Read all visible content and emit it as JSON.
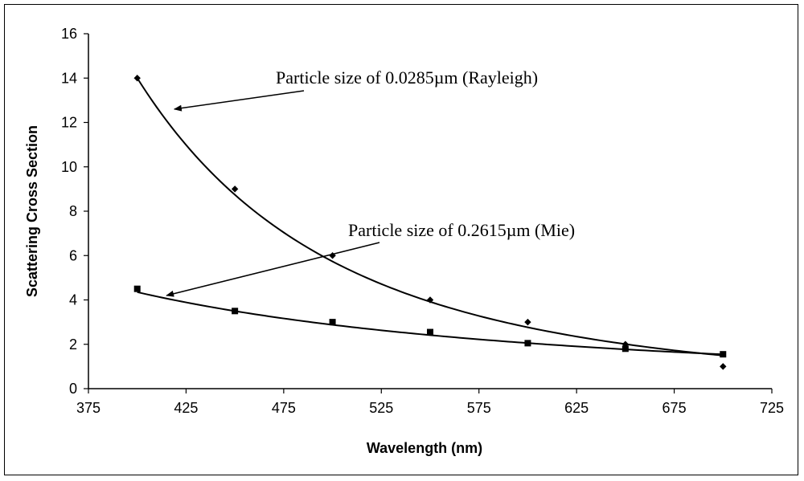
{
  "chart_data": {
    "type": "scatter",
    "title": "",
    "xlabel": "Wavelength (nm)",
    "ylabel": "Scattering Cross Section",
    "xlim": [
      375,
      725
    ],
    "ylim": [
      0,
      16
    ],
    "xticks": [
      375,
      425,
      475,
      525,
      575,
      625,
      675,
      725
    ],
    "yticks": [
      0,
      2,
      4,
      6,
      8,
      10,
      12,
      14,
      16
    ],
    "grid": false,
    "legend": "none",
    "series": [
      {
        "marker": "diamond",
        "trendline": "power",
        "x": [
          400,
          450,
          500,
          550,
          600,
          650,
          700
        ],
        "y": [
          14.0,
          9.0,
          6.0,
          4.0,
          3.0,
          2.0,
          1.0
        ],
        "fit": {
          "a": 14.0,
          "exponent": -4.0
        }
      },
      {
        "marker": "square",
        "trendline": "power",
        "x": [
          400,
          450,
          500,
          550,
          600,
          650,
          700
        ],
        "y": [
          4.5,
          3.5,
          3.0,
          2.55,
          2.05,
          1.8,
          1.55
        ],
        "fit": {
          "a": 4.35,
          "exponent": -1.85
        }
      }
    ],
    "annotations": [
      {
        "text": "Particle size of 0.0285µm (Rayleigh)",
        "arrow_to": [
          419,
          12.6
        ]
      },
      {
        "text": "Particle size of 0.2615µm (Mie)",
        "arrow_to": [
          415,
          4.2
        ]
      }
    ]
  }
}
